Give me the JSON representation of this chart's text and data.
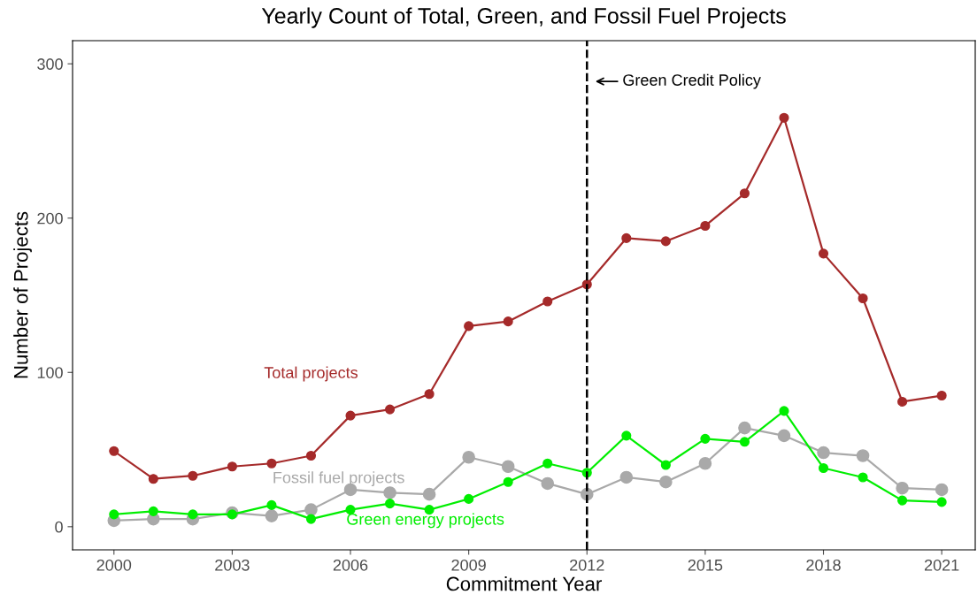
{
  "chart_data": {
    "type": "line",
    "title": "Yearly Count of Total, Green, and Fossil Fuel Projects",
    "xlabel": "Commitment Year",
    "ylabel": "Number of Projects",
    "x": [
      2000,
      2001,
      2002,
      2003,
      2004,
      2005,
      2006,
      2007,
      2008,
      2009,
      2010,
      2011,
      2012,
      2013,
      2014,
      2015,
      2016,
      2017,
      2018,
      2019,
      2020,
      2021
    ],
    "series": [
      {
        "name": "Fossil fuel projects",
        "color": "#a9a9a9",
        "values": [
          4,
          5,
          5,
          9,
          7,
          11,
          24,
          22,
          21,
          45,
          39,
          28,
          21,
          32,
          29,
          41,
          64,
          59,
          48,
          46,
          25,
          24
        ]
      },
      {
        "name": "Green energy projects",
        "color": "#00ee00",
        "values": [
          8,
          10,
          8,
          8,
          14,
          5,
          11,
          15,
          11,
          18,
          29,
          41,
          35,
          59,
          40,
          57,
          55,
          75,
          38,
          32,
          17,
          16
        ]
      },
      {
        "name": "Total projects",
        "color": "#a52a2a",
        "values": [
          49,
          31,
          33,
          39,
          41,
          46,
          72,
          76,
          86,
          130,
          133,
          146,
          157,
          187,
          185,
          195,
          216,
          265,
          177,
          148,
          81,
          85
        ]
      }
    ],
    "xlim": [
      1998.95,
      2021.85
    ],
    "xticks": [
      2000,
      2003,
      2006,
      2009,
      2012,
      2015,
      2018,
      2021
    ],
    "ylim": [
      -15,
      315
    ],
    "yticks": [
      0,
      100,
      200,
      300
    ],
    "ref_lines": [
      {
        "axis": "x",
        "value": 2012,
        "label": "Green Credit Policy",
        "color": "#000000",
        "line_style": "dashed"
      }
    ],
    "marker": "circle",
    "line_style": "solid",
    "grid": false,
    "legend": false
  }
}
